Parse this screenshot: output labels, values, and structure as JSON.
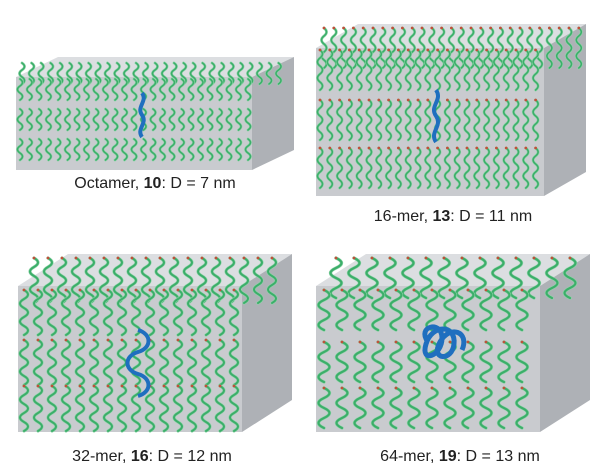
{
  "panels": [
    {
      "id": "octamer",
      "caption": {
        "prefix": "Octamer, ",
        "compound": "10",
        "suffix": ": D = 7 nm"
      },
      "layers": 3,
      "helix_turns": "short"
    },
    {
      "id": "16-mer",
      "caption": {
        "prefix": "16-mer, ",
        "compound": "13",
        "suffix": ": D = 11 nm"
      },
      "layers": 3,
      "helix_turns": "medium"
    },
    {
      "id": "32-mer",
      "caption": {
        "prefix": "32-mer, ",
        "compound": "16",
        "suffix": ": D = 12 nm"
      },
      "layers": 3,
      "helix_turns": "long"
    },
    {
      "id": "64-mer",
      "caption": {
        "prefix": "64-mer, ",
        "compound": "19",
        "suffix": ": D = 13 nm"
      },
      "layers": 3,
      "helix_turns": "longest"
    }
  ],
  "colors": {
    "helix": "#3cae6a",
    "helix_light": "#8fd4a8",
    "highlight": "#1f6fbf",
    "box_front": "#c9cbcf",
    "box_side": "#aeb1b6",
    "box_top": "#dcdee1",
    "tip": "#c0503a"
  }
}
